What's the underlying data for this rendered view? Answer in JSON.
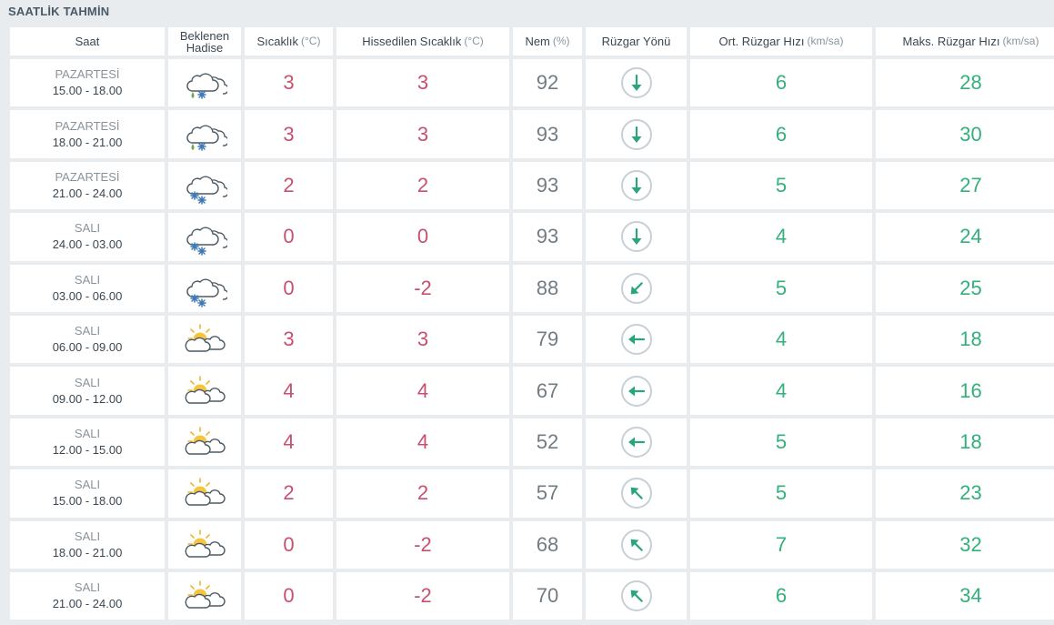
{
  "title": "SAATLİK TAHMİN",
  "headers": {
    "time": "Saat",
    "event": "Beklenen Hadise",
    "temp": "Sıcaklık",
    "temp_unit": "(°C)",
    "feels": "Hissedilen Sıcaklık",
    "feels_unit": "(°C)",
    "humidity": "Nem",
    "humidity_unit": "(%)",
    "wind_dir": "Rüzgar Yönü",
    "avg_wind": "Ort. Rüzgar Hızı",
    "avg_wind_unit": "(km/sa)",
    "max_wind": "Maks. Rüzgar Hızı",
    "max_wind_unit": "(km/sa)"
  },
  "colors": {
    "temp": "#c6506e",
    "wind": "#33b07c",
    "arrow": "#2aa57a"
  },
  "rows": [
    {
      "day": "PAZARTESİ",
      "range": "15.00 - 18.00",
      "icon": "sleet-icon",
      "temp": "3",
      "feels": "3",
      "humidity": "92",
      "dir_deg": 180,
      "avg": "6",
      "max": "28"
    },
    {
      "day": "PAZARTESİ",
      "range": "18.00 - 21.00",
      "icon": "sleet-icon",
      "temp": "3",
      "feels": "3",
      "humidity": "93",
      "dir_deg": 180,
      "avg": "6",
      "max": "30"
    },
    {
      "day": "PAZARTESİ",
      "range": "21.00 - 24.00",
      "icon": "snow-icon",
      "temp": "2",
      "feels": "2",
      "humidity": "93",
      "dir_deg": 180,
      "avg": "5",
      "max": "27"
    },
    {
      "day": "SALI",
      "range": "24.00 - 03.00",
      "icon": "snow-icon",
      "temp": "0",
      "feels": "0",
      "humidity": "93",
      "dir_deg": 180,
      "avg": "4",
      "max": "24"
    },
    {
      "day": "SALI",
      "range": "03.00 - 06.00",
      "icon": "snow-icon",
      "temp": "0",
      "feels": "-2",
      "humidity": "88",
      "dir_deg": 225,
      "avg": "5",
      "max": "25"
    },
    {
      "day": "SALI",
      "range": "06.00 - 09.00",
      "icon": "partly-cloudy-icon",
      "temp": "3",
      "feels": "3",
      "humidity": "79",
      "dir_deg": 270,
      "avg": "4",
      "max": "18"
    },
    {
      "day": "SALI",
      "range": "09.00 - 12.00",
      "icon": "partly-cloudy-icon",
      "temp": "4",
      "feels": "4",
      "humidity": "67",
      "dir_deg": 270,
      "avg": "4",
      "max": "16"
    },
    {
      "day": "SALI",
      "range": "12.00 - 15.00",
      "icon": "partly-cloudy-icon",
      "temp": "4",
      "feels": "4",
      "humidity": "52",
      "dir_deg": 270,
      "avg": "5",
      "max": "18"
    },
    {
      "day": "SALI",
      "range": "15.00 - 18.00",
      "icon": "partly-cloudy-icon",
      "temp": "2",
      "feels": "2",
      "humidity": "57",
      "dir_deg": 315,
      "avg": "5",
      "max": "23"
    },
    {
      "day": "SALI",
      "range": "18.00 - 21.00",
      "icon": "partly-cloudy-icon",
      "temp": "0",
      "feels": "-2",
      "humidity": "68",
      "dir_deg": 315,
      "avg": "7",
      "max": "32"
    },
    {
      "day": "SALI",
      "range": "21.00 - 24.00",
      "icon": "partly-cloudy-icon",
      "temp": "0",
      "feels": "-2",
      "humidity": "70",
      "dir_deg": 315,
      "avg": "6",
      "max": "34"
    }
  ]
}
